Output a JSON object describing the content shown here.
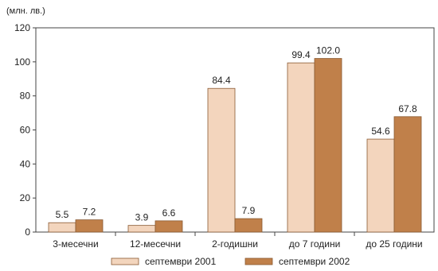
{
  "chart_data": {
    "type": "bar",
    "unit_label": "(млн. лв.)",
    "categories": [
      "3-месечни",
      "12-месечни",
      "2-годишни",
      "до 7 години",
      "до 25 години"
    ],
    "series": [
      {
        "name": "септември 2001",
        "values": [
          5.5,
          3.9,
          84.4,
          99.4,
          54.6
        ],
        "value_labels": [
          "5.5",
          "3.9",
          "84.4",
          "99.4",
          "54.6"
        ],
        "color": "#f3d5bd"
      },
      {
        "name": "септември 2002",
        "values": [
          7.2,
          6.6,
          7.9,
          102.0,
          67.8
        ],
        "value_labels": [
          "7.2",
          "6.6",
          "7.9",
          "102.0",
          "67.8"
        ],
        "color": "#c0804a"
      }
    ],
    "ylim": [
      0,
      120
    ],
    "yticks": [
      0,
      20,
      40,
      60,
      80,
      100,
      120
    ],
    "grid": false,
    "legend_position": "bottom"
  }
}
